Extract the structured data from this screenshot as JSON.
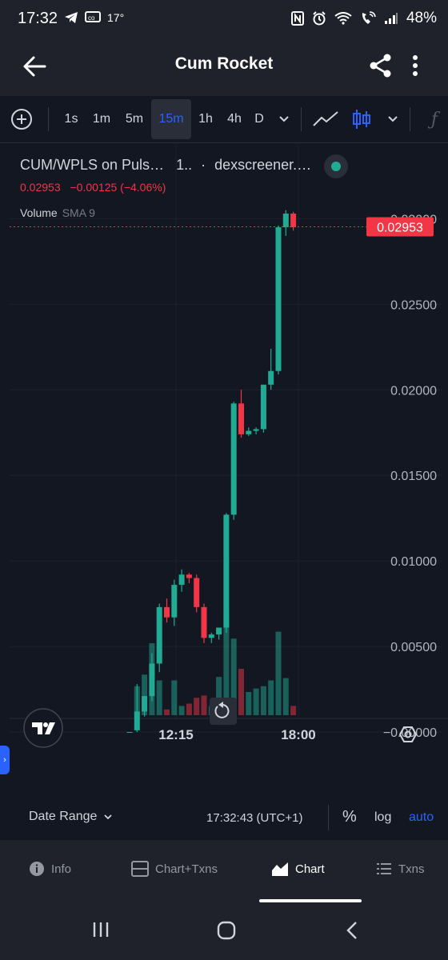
{
  "status_bar": {
    "time": "17:32",
    "temperature": "17°",
    "battery": "48%",
    "icons_left": [
      "telegram-icon",
      "messaging-icon"
    ],
    "icons_right": [
      "nfc-icon",
      "alarm-icon",
      "wifi-icon",
      "wifi-call-icon",
      "signal-icon"
    ]
  },
  "app_bar": {
    "title": "Cum Rocket",
    "back_icon": "arrow-left-icon",
    "share_icon": "share-icon",
    "more_icon": "more-vertical-icon"
  },
  "toolbar": {
    "intervals": [
      "1s",
      "1m",
      "5m",
      "15m",
      "1h",
      "4h",
      "D"
    ],
    "selected_interval": "15m",
    "accent": "#2962ff"
  },
  "legend": {
    "symbol": "CUM/WPLS on Puls…",
    "interval": "1..",
    "source": "dexscreener.…",
    "last_price": "0.02953",
    "change": "−0.00125 (−4.06%)",
    "volume_label": "Volume",
    "sma_label": "SMA 9"
  },
  "price_scale": {
    "current_price_label": "0.02953",
    "tick_labels": [
      "0.03000",
      "0.02500",
      "0.02000",
      "0.01500",
      "0.01000",
      "0.00500",
      "−0.00000"
    ]
  },
  "time_scale": {
    "labels": [
      "12:15",
      "18:00"
    ]
  },
  "chart_data": {
    "type": "candlestick",
    "ylim": [
      0.0,
      0.031
    ],
    "y_ticks": [
      0.0,
      0.005,
      0.01,
      0.015,
      0.02,
      0.025,
      0.03
    ],
    "x_ticks": [
      "12:15",
      "18:00"
    ],
    "last_price": 0.02953,
    "up_color": "#22ab94",
    "down_color": "#f23645",
    "candles": [
      {
        "open": 0.0,
        "high": 0.0,
        "low": 0.0,
        "close": 0.0
      },
      {
        "open": 0.0001,
        "high": 0.0028,
        "low": 0.0,
        "close": 0.0012
      },
      {
        "open": 0.0012,
        "high": 0.0021,
        "low": 0.0009,
        "close": 0.0021
      },
      {
        "open": 0.0021,
        "high": 0.0046,
        "low": 0.0018,
        "close": 0.004
      },
      {
        "open": 0.004,
        "high": 0.0075,
        "low": 0.0035,
        "close": 0.0073
      },
      {
        "open": 0.0073,
        "high": 0.0078,
        "low": 0.0064,
        "close": 0.0067
      },
      {
        "open": 0.0067,
        "high": 0.0089,
        "low": 0.0062,
        "close": 0.0086
      },
      {
        "open": 0.0086,
        "high": 0.0095,
        "low": 0.0082,
        "close": 0.0092
      },
      {
        "open": 0.0092,
        "high": 0.0093,
        "low": 0.0087,
        "close": 0.009
      },
      {
        "open": 0.009,
        "high": 0.0092,
        "low": 0.007,
        "close": 0.0073
      },
      {
        "open": 0.0073,
        "high": 0.0075,
        "low": 0.0052,
        "close": 0.0055
      },
      {
        "open": 0.0055,
        "high": 0.0058,
        "low": 0.0052,
        "close": 0.0057
      },
      {
        "open": 0.0057,
        "high": 0.0061,
        "low": 0.0054,
        "close": 0.0061
      },
      {
        "open": 0.0061,
        "high": 0.0128,
        "low": 0.0058,
        "close": 0.0127
      },
      {
        "open": 0.0127,
        "high": 0.0193,
        "low": 0.0124,
        "close": 0.0192
      },
      {
        "open": 0.0192,
        "high": 0.02,
        "low": 0.0172,
        "close": 0.0174
      },
      {
        "open": 0.0174,
        "high": 0.0178,
        "low": 0.0173,
        "close": 0.0176
      },
      {
        "open": 0.0176,
        "high": 0.0178,
        "low": 0.0174,
        "close": 0.0177
      },
      {
        "open": 0.0177,
        "high": 0.0203,
        "low": 0.0175,
        "close": 0.0203
      },
      {
        "open": 0.0203,
        "high": 0.0224,
        "low": 0.02,
        "close": 0.0211
      },
      {
        "open": 0.0211,
        "high": 0.0296,
        "low": 0.0209,
        "close": 0.0295
      },
      {
        "open": 0.0295,
        "high": 0.0305,
        "low": 0.029,
        "close": 0.0303
      },
      {
        "open": 0.0303,
        "high": 0.0304,
        "low": 0.0293,
        "close": 0.0295
      }
    ],
    "volume_levels": [
      0.0,
      0.25,
      0.35,
      0.62,
      0.3,
      0.05,
      0.3,
      0.08,
      0.1,
      0.15,
      0.17,
      0.08,
      0.33,
      0.9,
      0.66,
      0.4,
      0.2,
      0.23,
      0.25,
      0.3,
      0.72,
      0.32,
      0.08
    ]
  },
  "chart_controls": {
    "logo_icon": "tradingview-logo-icon",
    "reset_icon": "reset-view-icon",
    "settings_icon": "settings-hexagon-icon",
    "expand_icon": "chevron-right-icon"
  },
  "bottom_bar": {
    "date_range": "Date Range",
    "time": "17:32:43 (UTC+1)",
    "percent": "%",
    "log": "log",
    "auto": "auto"
  },
  "bottom_nav": {
    "items": [
      {
        "label": "Info",
        "icon": "info-icon"
      },
      {
        "label": "Chart+Txns",
        "icon": "chart-txns-icon"
      },
      {
        "label": "Chart",
        "icon": "area-chart-icon"
      },
      {
        "label": "Txns",
        "icon": "list-icon"
      }
    ],
    "active": "Chart"
  },
  "system_nav": {
    "icons": [
      "recent-apps-icon",
      "home-icon",
      "back-nav-icon"
    ]
  }
}
